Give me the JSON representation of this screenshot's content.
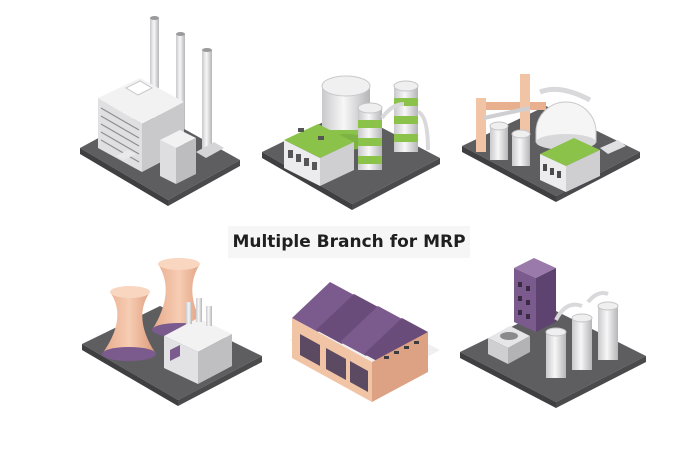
{
  "caption": "Multiple Branch for MRP",
  "illustrations": [
    {
      "icon": "power-plant-chimneys-icon"
    },
    {
      "icon": "green-storage-tanks-factory-icon"
    },
    {
      "icon": "dome-pipeline-factory-icon"
    },
    {
      "icon": "cooling-towers-plant-icon"
    },
    {
      "icon": "purple-roof-warehouse-icon"
    },
    {
      "icon": "purple-tower-tanks-plant-icon"
    }
  ],
  "colors": {
    "base": "#5e5e60",
    "base_edge": "#3f3f41",
    "green": "#8bc34a",
    "purple": "#7b5a8e",
    "peach": "#f2c4a6",
    "grey_building": "#e4e4e6"
  }
}
